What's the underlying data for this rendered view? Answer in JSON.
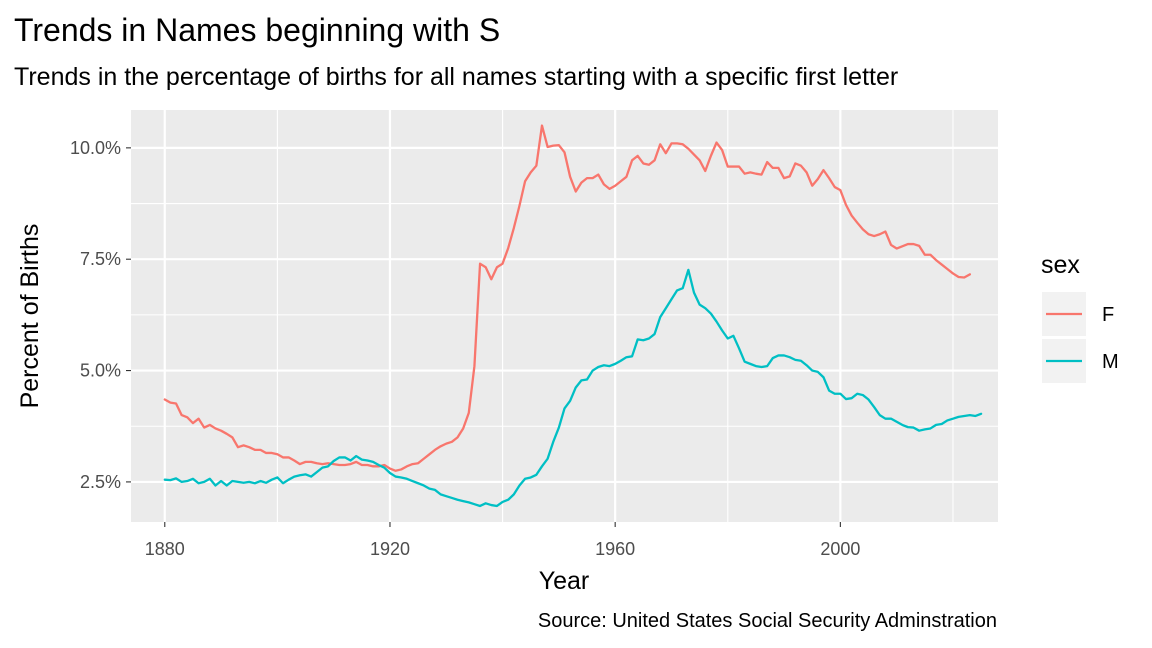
{
  "chart_data": {
    "type": "line",
    "title": "Trends in Names beginning with S",
    "subtitle": "Trends in the percentage of births for all names starting with a specific first letter",
    "xlabel": "Year",
    "ylabel": "Percent of Births",
    "caption": "Source: United States Social Security Adminstration",
    "xlim": [
      1874,
      2028
    ],
    "ylim": [
      1.6,
      10.85
    ],
    "x_ticks": [
      1880,
      1920,
      1960,
      2000
    ],
    "x_tick_labels": [
      "1880",
      "1920",
      "1960",
      "2000"
    ],
    "y_ticks": [
      2.5,
      5.0,
      7.5,
      10.0
    ],
    "y_tick_labels": [
      "2.5%",
      "5.0%",
      "7.5%",
      "10.0%"
    ],
    "grid": true,
    "legend": {
      "title": "sex",
      "position": "right"
    },
    "x_start": 1880,
    "series": [
      {
        "name": "F",
        "color": "#F8766D",
        "values": [
          4.35,
          4.28,
          4.26,
          4.0,
          3.95,
          3.82,
          3.92,
          3.72,
          3.78,
          3.7,
          3.65,
          3.58,
          3.5,
          3.28,
          3.32,
          3.28,
          3.22,
          3.22,
          3.15,
          3.15,
          3.12,
          3.05,
          3.05,
          2.98,
          2.9,
          2.95,
          2.95,
          2.92,
          2.9,
          2.92,
          2.9,
          2.88,
          2.88,
          2.9,
          2.95,
          2.88,
          2.88,
          2.85,
          2.85,
          2.88,
          2.8,
          2.75,
          2.78,
          2.85,
          2.9,
          2.92,
          3.02,
          3.12,
          3.22,
          3.3,
          3.36,
          3.4,
          3.5,
          3.7,
          4.05,
          5.1,
          7.4,
          7.32,
          7.05,
          7.32,
          7.4,
          7.75,
          8.2,
          8.7,
          9.25,
          9.45,
          9.6,
          10.5,
          10.02,
          10.05,
          10.06,
          9.9,
          9.35,
          9.02,
          9.22,
          9.32,
          9.32,
          9.4,
          9.18,
          9.08,
          9.15,
          9.25,
          9.35,
          9.72,
          9.82,
          9.65,
          9.62,
          9.72,
          10.08,
          9.88,
          10.1,
          10.1,
          10.08,
          9.98,
          9.85,
          9.72,
          9.48,
          9.82,
          10.12,
          9.95,
          9.58,
          9.58,
          9.58,
          9.42,
          9.45,
          9.42,
          9.4,
          9.68,
          9.55,
          9.55,
          9.32,
          9.36,
          9.65,
          9.6,
          9.45,
          9.15,
          9.3,
          9.5,
          9.32,
          9.12,
          9.05,
          8.72,
          8.48,
          8.32,
          8.17,
          8.06,
          8.02,
          8.06,
          8.12,
          7.82,
          7.74,
          7.79,
          7.84,
          7.84,
          7.8,
          7.6,
          7.6,
          7.48,
          7.38,
          7.28,
          7.18,
          7.1,
          7.09,
          7.16
        ]
      },
      {
        "name": "M",
        "color": "#00BFC4",
        "values": [
          2.55,
          2.54,
          2.58,
          2.5,
          2.52,
          2.57,
          2.47,
          2.5,
          2.57,
          2.42,
          2.52,
          2.42,
          2.52,
          2.5,
          2.48,
          2.5,
          2.47,
          2.52,
          2.48,
          2.55,
          2.6,
          2.47,
          2.55,
          2.62,
          2.65,
          2.67,
          2.62,
          2.72,
          2.82,
          2.85,
          2.97,
          3.05,
          3.05,
          2.98,
          3.08,
          3.0,
          2.98,
          2.95,
          2.88,
          2.82,
          2.7,
          2.62,
          2.6,
          2.57,
          2.52,
          2.47,
          2.42,
          2.35,
          2.32,
          2.22,
          2.18,
          2.14,
          2.1,
          2.07,
          2.04,
          2.0,
          1.96,
          2.02,
          1.98,
          1.96,
          2.05,
          2.1,
          2.22,
          2.42,
          2.57,
          2.6,
          2.66,
          2.85,
          3.02,
          3.4,
          3.72,
          4.15,
          4.32,
          4.62,
          4.78,
          4.8,
          5.0,
          5.08,
          5.12,
          5.1,
          5.15,
          5.22,
          5.3,
          5.32,
          5.7,
          5.68,
          5.72,
          5.82,
          6.2,
          6.4,
          6.6,
          6.8,
          6.85,
          7.26,
          6.75,
          6.48,
          6.4,
          6.28,
          6.1,
          5.9,
          5.72,
          5.78,
          5.5,
          5.2,
          5.15,
          5.1,
          5.08,
          5.1,
          5.28,
          5.34,
          5.34,
          5.3,
          5.24,
          5.22,
          5.12,
          5.0,
          4.97,
          4.85,
          4.55,
          4.48,
          4.48,
          4.36,
          4.38,
          4.48,
          4.45,
          4.35,
          4.18,
          4.0,
          3.92,
          3.92,
          3.85,
          3.78,
          3.73,
          3.72,
          3.65,
          3.68,
          3.7,
          3.78,
          3.8,
          3.88,
          3.92,
          3.96,
          3.98,
          4.0,
          3.98,
          4.03
        ]
      }
    ]
  }
}
